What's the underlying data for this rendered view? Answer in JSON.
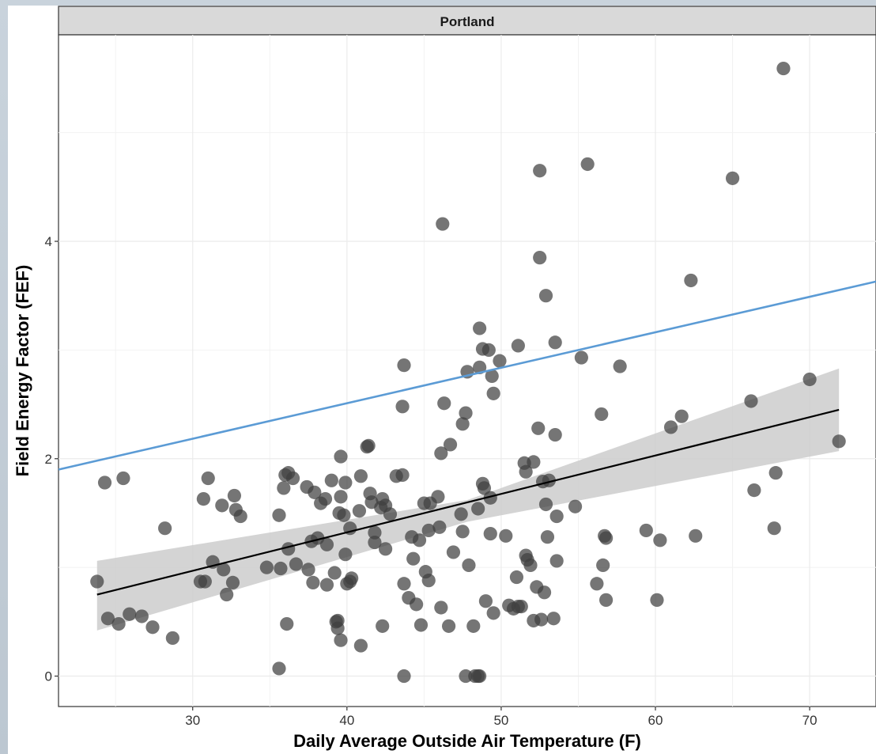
{
  "chart_data": {
    "type": "scatter",
    "facet_label": "Portland",
    "xlabel": "Daily Average Outside Air Temperature (F)",
    "ylabel": "Field Energy Factor (FEF)",
    "xlim": [
      21.3,
      74.3
    ],
    "ylim": [
      -0.28,
      5.9
    ],
    "x_ticks": [
      30,
      40,
      50,
      60,
      70
    ],
    "y_ticks": [
      0,
      2,
      4
    ],
    "grid": true,
    "colors": {
      "points": "#404040",
      "fit_line": "#000000",
      "confidence_band": "#cccccc",
      "reference_line": "#5b9bd5",
      "strip": "#d9d9d9"
    },
    "series": [
      {
        "type": "scatter",
        "points": [
          [
            23.8,
            0.87
          ],
          [
            24.3,
            1.78
          ],
          [
            24.5,
            0.53
          ],
          [
            25.2,
            0.48
          ],
          [
            25.5,
            1.82
          ],
          [
            25.9,
            0.57
          ],
          [
            26.7,
            0.55
          ],
          [
            27.4,
            0.45
          ],
          [
            28.2,
            1.36
          ],
          [
            28.7,
            0.35
          ],
          [
            30.5,
            0.87
          ],
          [
            30.7,
            1.63
          ],
          [
            30.8,
            0.87
          ],
          [
            31.0,
            1.82
          ],
          [
            31.3,
            1.05
          ],
          [
            31.9,
            1.57
          ],
          [
            32.0,
            0.98
          ],
          [
            32.2,
            0.75
          ],
          [
            32.6,
            0.86
          ],
          [
            32.7,
            1.66
          ],
          [
            32.8,
            1.53
          ],
          [
            33.1,
            1.47
          ],
          [
            34.8,
            1.0
          ],
          [
            35.6,
            0.07
          ],
          [
            35.6,
            1.48
          ],
          [
            35.7,
            0.99
          ],
          [
            35.9,
            1.73
          ],
          [
            36.0,
            1.85
          ],
          [
            36.1,
            0.48
          ],
          [
            36.2,
            1.17
          ],
          [
            36.2,
            1.87
          ],
          [
            36.5,
            1.82
          ],
          [
            36.7,
            1.03
          ],
          [
            37.4,
            1.74
          ],
          [
            37.5,
            0.98
          ],
          [
            37.7,
            1.24
          ],
          [
            37.8,
            0.86
          ],
          [
            37.9,
            1.69
          ],
          [
            38.1,
            1.27
          ],
          [
            38.3,
            1.59
          ],
          [
            38.6,
            1.63
          ],
          [
            38.7,
            1.21
          ],
          [
            38.7,
            0.84
          ],
          [
            39.0,
            1.8
          ],
          [
            39.2,
            0.95
          ],
          [
            39.3,
            0.5
          ],
          [
            39.4,
            0.44
          ],
          [
            39.4,
            0.51
          ],
          [
            39.5,
            1.5
          ],
          [
            39.6,
            2.02
          ],
          [
            39.6,
            1.65
          ],
          [
            39.6,
            0.33
          ],
          [
            39.8,
            1.48
          ],
          [
            39.9,
            1.78
          ],
          [
            39.9,
            1.12
          ],
          [
            40.0,
            0.85
          ],
          [
            40.2,
            1.36
          ],
          [
            40.2,
            0.87
          ],
          [
            40.3,
            0.9
          ],
          [
            40.8,
            1.52
          ],
          [
            40.9,
            0.28
          ],
          [
            40.9,
            1.84
          ],
          [
            41.3,
            2.11
          ],
          [
            41.4,
            2.12
          ],
          [
            41.5,
            1.68
          ],
          [
            41.6,
            1.6
          ],
          [
            41.8,
            1.32
          ],
          [
            41.8,
            1.23
          ],
          [
            42.2,
            1.55
          ],
          [
            42.3,
            1.63
          ],
          [
            42.3,
            0.46
          ],
          [
            42.5,
            1.57
          ],
          [
            42.5,
            1.17
          ],
          [
            42.8,
            1.49
          ],
          [
            43.2,
            1.84
          ],
          [
            43.6,
            1.85
          ],
          [
            43.6,
            2.48
          ],
          [
            43.7,
            0.85
          ],
          [
            43.7,
            2.86
          ],
          [
            43.7,
            0.0
          ],
          [
            44.0,
            0.72
          ],
          [
            44.2,
            1.28
          ],
          [
            44.3,
            1.08
          ],
          [
            44.5,
            0.66
          ],
          [
            44.7,
            1.25
          ],
          [
            44.8,
            0.47
          ],
          [
            45.0,
            1.59
          ],
          [
            45.1,
            0.96
          ],
          [
            45.3,
            1.34
          ],
          [
            45.3,
            0.88
          ],
          [
            45.4,
            1.59
          ],
          [
            45.9,
            1.65
          ],
          [
            46.0,
            1.37
          ],
          [
            46.1,
            0.63
          ],
          [
            46.1,
            2.05
          ],
          [
            46.2,
            4.16
          ],
          [
            46.3,
            2.51
          ],
          [
            46.6,
            0.46
          ],
          [
            46.7,
            2.13
          ],
          [
            46.9,
            1.14
          ],
          [
            47.4,
            1.49
          ],
          [
            47.5,
            2.32
          ],
          [
            47.5,
            1.33
          ],
          [
            47.7,
            2.42
          ],
          [
            47.7,
            0.0
          ],
          [
            47.8,
            2.8
          ],
          [
            47.9,
            1.02
          ],
          [
            48.2,
            0.46
          ],
          [
            48.3,
            0.0
          ],
          [
            48.5,
            0.0
          ],
          [
            48.5,
            1.54
          ],
          [
            48.6,
            0.0
          ],
          [
            48.6,
            3.2
          ],
          [
            48.6,
            2.84
          ],
          [
            48.8,
            3.01
          ],
          [
            48.8,
            1.77
          ],
          [
            48.9,
            1.73
          ],
          [
            49.0,
            0.69
          ],
          [
            49.2,
            3.0
          ],
          [
            49.3,
            1.64
          ],
          [
            49.3,
            1.31
          ],
          [
            49.4,
            2.76
          ],
          [
            49.5,
            2.6
          ],
          [
            49.5,
            0.58
          ],
          [
            49.9,
            2.9
          ],
          [
            50.3,
            1.29
          ],
          [
            50.5,
            0.65
          ],
          [
            50.8,
            0.62
          ],
          [
            51.0,
            0.91
          ],
          [
            51.1,
            3.04
          ],
          [
            51.1,
            0.64
          ],
          [
            51.3,
            0.64
          ],
          [
            51.5,
            1.96
          ],
          [
            51.6,
            1.88
          ],
          [
            51.6,
            1.11
          ],
          [
            51.7,
            1.07
          ],
          [
            51.9,
            1.02
          ],
          [
            52.1,
            0.51
          ],
          [
            52.1,
            1.97
          ],
          [
            52.3,
            0.82
          ],
          [
            52.4,
            2.28
          ],
          [
            52.5,
            4.65
          ],
          [
            52.5,
            3.85
          ],
          [
            52.6,
            0.52
          ],
          [
            52.7,
            1.79
          ],
          [
            52.8,
            0.77
          ],
          [
            52.9,
            1.58
          ],
          [
            52.9,
            3.5
          ],
          [
            53.0,
            1.28
          ],
          [
            53.1,
            1.8
          ],
          [
            53.4,
            0.53
          ],
          [
            53.5,
            3.07
          ],
          [
            53.5,
            2.22
          ],
          [
            53.6,
            1.47
          ],
          [
            53.6,
            1.06
          ],
          [
            54.8,
            1.56
          ],
          [
            55.2,
            2.93
          ],
          [
            55.6,
            4.71
          ],
          [
            56.2,
            0.85
          ],
          [
            56.5,
            2.41
          ],
          [
            56.6,
            1.02
          ],
          [
            56.7,
            1.29
          ],
          [
            56.8,
            1.27
          ],
          [
            56.8,
            0.7
          ],
          [
            57.7,
            2.85
          ],
          [
            59.4,
            1.34
          ],
          [
            60.1,
            0.7
          ],
          [
            60.3,
            1.25
          ],
          [
            61.0,
            2.29
          ],
          [
            61.7,
            2.39
          ],
          [
            62.3,
            3.64
          ],
          [
            62.6,
            1.29
          ],
          [
            65.0,
            4.58
          ],
          [
            66.2,
            2.53
          ],
          [
            66.4,
            1.71
          ],
          [
            67.7,
            1.36
          ],
          [
            67.8,
            1.87
          ],
          [
            68.3,
            5.59
          ],
          [
            70.0,
            2.73
          ],
          [
            71.9,
            2.16
          ]
        ]
      },
      {
        "type": "line",
        "points": [
          [
            23.8,
            0.75
          ],
          [
            71.9,
            2.45
          ]
        ]
      },
      {
        "type": "area",
        "upper": [
          [
            23.8,
            1.06
          ],
          [
            47.8,
            1.62
          ],
          [
            71.9,
            2.83
          ]
        ],
        "lower": [
          [
            23.8,
            0.42
          ],
          [
            47.8,
            1.42
          ],
          [
            71.9,
            2.07
          ]
        ]
      },
      {
        "type": "line",
        "points": [
          [
            21.3,
            1.9
          ],
          [
            74.3,
            3.63
          ]
        ]
      }
    ]
  }
}
